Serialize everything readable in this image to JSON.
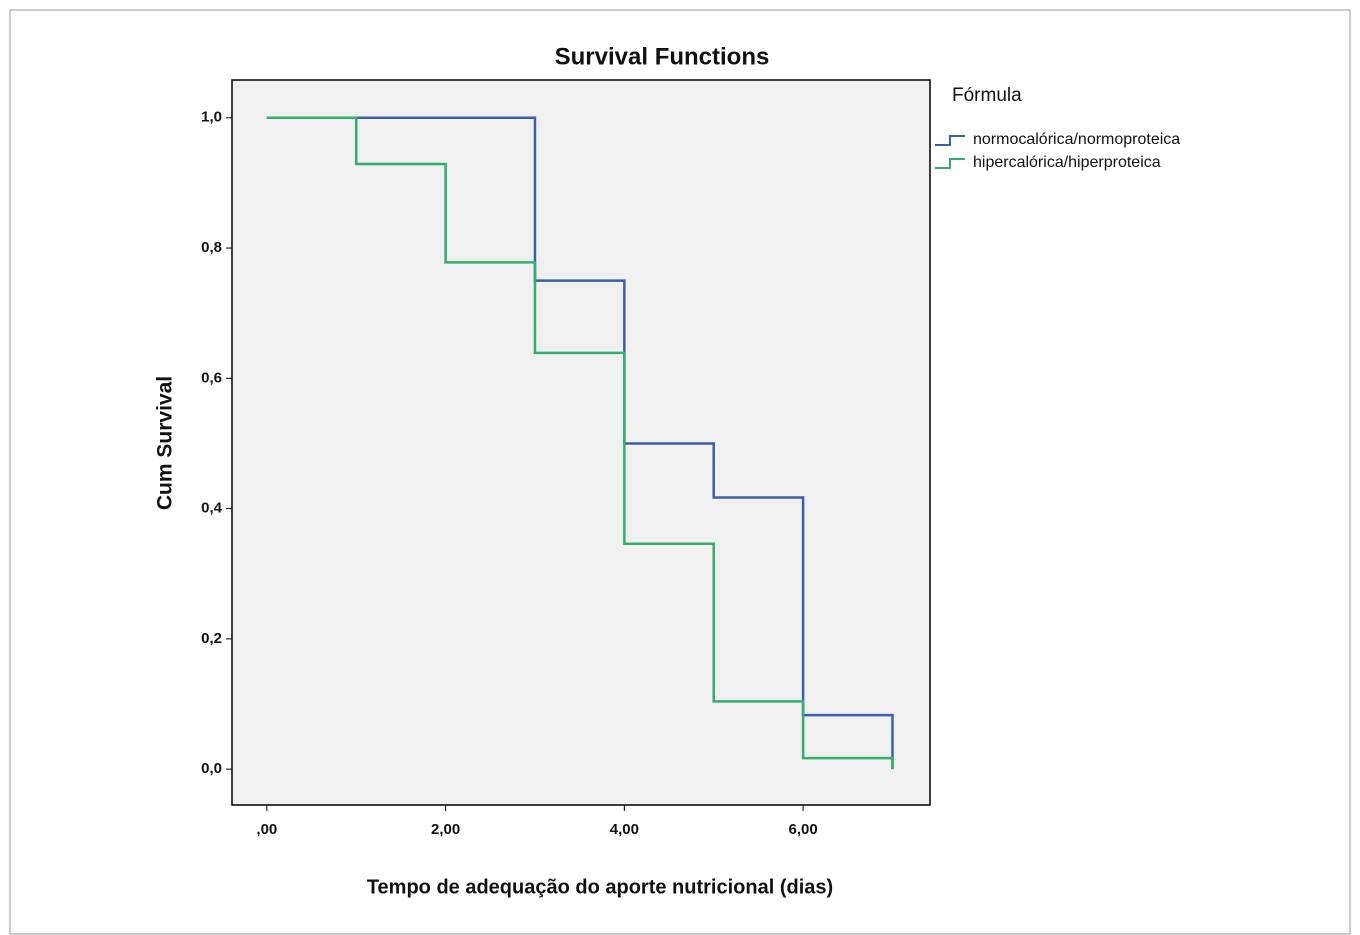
{
  "chart_data": {
    "type": "step",
    "title": "Survival Functions",
    "x_label": "Tempo de adequação do aporte nutricional (dias)",
    "y_label": "Cum Survival",
    "x": [
      0,
      1,
      2,
      3,
      4,
      5,
      6,
      7
    ],
    "series": [
      {
        "name": "normocalórica/normoproteica",
        "color": "#3c5ea8",
        "values": [
          1,
          1,
          1,
          0.75,
          0.5,
          0.417,
          0.083,
          0
        ]
      },
      {
        "name": "hipercalórica/hiperproteica",
        "color": "#34ad6e",
        "values": [
          1,
          0.929,
          0.778,
          0.639,
          0.346,
          0.104,
          0.017,
          0
        ]
      }
    ],
    "xlim": [
      -0.39,
      7.42
    ],
    "xticks": [
      {
        "value": 0,
        "label": ",00"
      },
      {
        "value": 2,
        "label": "2,00"
      },
      {
        "value": 4,
        "label": "4,00"
      },
      {
        "value": 6,
        "label": "6,00"
      }
    ],
    "ylim": [
      -0.055,
      1.058
    ],
    "yticks": [
      {
        "value": 0,
        "label": "0,0"
      },
      {
        "value": 0.2,
        "label": "0,2"
      },
      {
        "value": 0.4,
        "label": "0,4"
      },
      {
        "value": 0.6,
        "label": "0,6"
      },
      {
        "value": 0.8,
        "label": "0,8"
      },
      {
        "value": 1,
        "label": "1,0"
      }
    ],
    "legend": "right",
    "legend_title": "Fórmula",
    "grid": false
  }
}
